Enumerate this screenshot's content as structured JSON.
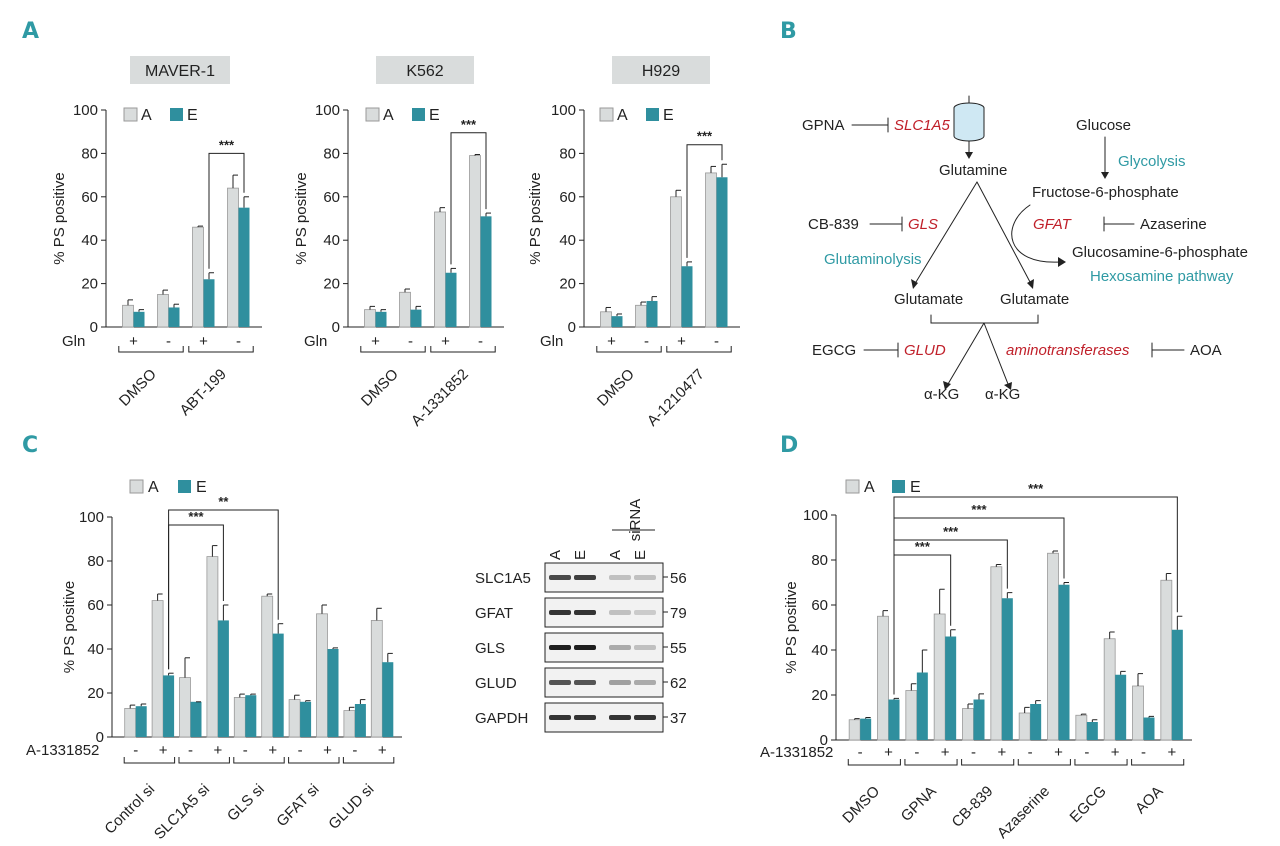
{
  "colors": {
    "A": "#d9dcdc",
    "E": "#2f8f9e",
    "accent": "#2f9aa4",
    "red": "#c0202a"
  },
  "panels": {
    "A": "A",
    "B": "B",
    "C": "C",
    "D": "D"
  },
  "legend": {
    "A": "A",
    "E": "E"
  },
  "gln_label": "Gln",
  "treatment_label": "A-1331852",
  "chart_data": [
    {
      "id": "A1",
      "type": "bar",
      "title": "MAVER-1",
      "ylabel": "% PS positive",
      "ylim": [
        0,
        100
      ],
      "yticks": [
        "0",
        "20",
        "40",
        "60",
        "80",
        "100"
      ],
      "conditions": [
        "+",
        "-",
        "+",
        "-"
      ],
      "groups": [
        "DMSO",
        "ABT-199"
      ],
      "series": [
        {
          "name": "A",
          "values": [
            10,
            15,
            46,
            64
          ],
          "errors": [
            2.5,
            2,
            0.5,
            6
          ]
        },
        {
          "name": "E",
          "values": [
            7,
            9,
            22,
            55
          ],
          "errors": [
            1,
            1.5,
            3,
            5
          ]
        }
      ],
      "significance": [
        {
          "label": "***",
          "from": [
            2,
            1
          ],
          "to": [
            3,
            1
          ]
        }
      ]
    },
    {
      "id": "A2",
      "type": "bar",
      "title": "K562",
      "ylabel": "% PS positive",
      "ylim": [
        0,
        100
      ],
      "yticks": [
        "0",
        "20",
        "40",
        "60",
        "80",
        "100"
      ],
      "conditions": [
        "+",
        "-",
        "+",
        "-"
      ],
      "groups": [
        "DMSO",
        "A-1331852"
      ],
      "series": [
        {
          "name": "A",
          "values": [
            8,
            16,
            53,
            79
          ],
          "errors": [
            1.5,
            1.5,
            2,
            0.5
          ]
        },
        {
          "name": "E",
          "values": [
            7,
            8,
            25,
            51
          ],
          "errors": [
            1,
            1.5,
            2,
            1.5
          ]
        }
      ],
      "significance": [
        {
          "label": "***",
          "from": [
            2,
            1
          ],
          "to": [
            3,
            1
          ]
        }
      ]
    },
    {
      "id": "A3",
      "type": "bar",
      "title": "H929",
      "ylabel": "% PS positive",
      "ylim": [
        0,
        100
      ],
      "yticks": [
        "0",
        "20",
        "40",
        "60",
        "80",
        "100"
      ],
      "conditions": [
        "+",
        "-",
        "+",
        "-"
      ],
      "groups": [
        "DMSO",
        "A-1210477"
      ],
      "series": [
        {
          "name": "A",
          "values": [
            7,
            10,
            60,
            71
          ],
          "errors": [
            2,
            1.5,
            3,
            3
          ]
        },
        {
          "name": "E",
          "values": [
            5,
            12,
            28,
            69
          ],
          "errors": [
            1,
            2,
            2,
            6
          ]
        }
      ],
      "significance": [
        {
          "label": "***",
          "from": [
            2,
            1
          ],
          "to": [
            3,
            1
          ]
        }
      ]
    },
    {
      "id": "C",
      "type": "bar",
      "title": "",
      "ylabel": "% PS positive",
      "ylim": [
        0,
        100
      ],
      "yticks": [
        "0",
        "20",
        "40",
        "60",
        "80",
        "100"
      ],
      "conditions": [
        "-",
        "+",
        "-",
        "+",
        "-",
        "+",
        "-",
        "+",
        "-",
        "+"
      ],
      "groups": [
        "Control si",
        "SLC1A5 si",
        "GLS si",
        "GFAT si",
        "GLUD si"
      ],
      "series": [
        {
          "name": "A",
          "values": [
            13,
            62,
            27,
            82,
            18,
            64,
            17,
            56,
            12,
            53
          ],
          "errors": [
            1.5,
            3,
            9,
            5,
            1.5,
            1,
            2,
            4,
            1.5,
            5.5
          ]
        },
        {
          "name": "E",
          "values": [
            14,
            28,
            16,
            53,
            19,
            47,
            16,
            40,
            15,
            34
          ],
          "errors": [
            1,
            1,
            0,
            7,
            0.5,
            4.5,
            0.5,
            0.5,
            2,
            4
          ]
        }
      ],
      "significance": [
        {
          "label": "***",
          "from": [
            1,
            1
          ],
          "to": [
            3,
            1
          ]
        },
        {
          "label": "**",
          "from": [
            1,
            1
          ],
          "to": [
            5,
            1
          ]
        }
      ]
    },
    {
      "id": "D",
      "type": "bar",
      "title": "",
      "ylabel": "% PS positive",
      "ylim": [
        0,
        100
      ],
      "yticks": [
        "0",
        "20",
        "40",
        "60",
        "80",
        "100"
      ],
      "conditions": [
        "-",
        "+",
        "-",
        "+",
        "-",
        "+",
        "-",
        "+",
        "-",
        "+",
        "-",
        "+"
      ],
      "groups": [
        "DMSO",
        "GPNA",
        "CB-839",
        "Azaserine",
        "EGCG",
        "AOA"
      ],
      "series": [
        {
          "name": "A",
          "values": [
            9,
            55,
            22,
            56,
            14,
            77,
            12,
            83,
            11,
            45,
            24,
            71
          ],
          "errors": [
            0.5,
            2.5,
            3,
            11,
            2,
            1,
            2.5,
            1,
            0.5,
            3,
            5.5,
            3
          ]
        },
        {
          "name": "E",
          "values": [
            9.5,
            18,
            30,
            46,
            18,
            63,
            16,
            69,
            8,
            29,
            10,
            49
          ],
          "errors": [
            0.5,
            0.5,
            10,
            3,
            2.5,
            2.5,
            1.5,
            1,
            1,
            1.5,
            0.5,
            6
          ]
        }
      ],
      "significance": [
        {
          "label": "***",
          "from": [
            1,
            1
          ],
          "to": [
            3,
            1
          ]
        },
        {
          "label": "***",
          "from": [
            1,
            1
          ],
          "to": [
            5,
            1
          ]
        },
        {
          "label": "***",
          "from": [
            1,
            1
          ],
          "to": [
            7,
            1
          ]
        },
        {
          "label": "***",
          "from": [
            1,
            1
          ],
          "to": [
            11,
            1
          ]
        }
      ]
    }
  ],
  "blot": {
    "lanes": [
      "A",
      "E",
      "A",
      "E"
    ],
    "sirna_label": "siRNA",
    "bands": [
      {
        "name": "SLC1A5",
        "kda": "56",
        "intensity": [
          0.75,
          0.8,
          0.2,
          0.2
        ]
      },
      {
        "name": "GFAT",
        "kda": "79",
        "intensity": [
          0.85,
          0.85,
          0.2,
          0.15
        ]
      },
      {
        "name": "GLS",
        "kda": "55",
        "intensity": [
          0.95,
          0.95,
          0.3,
          0.2
        ]
      },
      {
        "name": "GLUD",
        "kda": "62",
        "intensity": [
          0.7,
          0.7,
          0.35,
          0.3
        ]
      },
      {
        "name": "GAPDH",
        "kda": "37",
        "intensity": [
          0.85,
          0.85,
          0.85,
          0.85
        ]
      }
    ]
  },
  "pathway": {
    "gpna": "GPNA",
    "slc1a5": "SLC1A5",
    "glutamine": "Glutamine",
    "glucose": "Glucose",
    "glycolysis": "Glycolysis",
    "f6p": "Fructose-6-phosphate",
    "cb839": "CB-839",
    "gls": "GLS",
    "gfat": "GFAT",
    "azaserine": "Azaserine",
    "g6p": "Glucosamine-6-phosphate",
    "glutaminolysis": "Glutaminolysis",
    "hexosamine": "Hexosamine pathway",
    "glutamate1": "Glutamate",
    "glutamate2": "Glutamate",
    "egcg": "EGCG",
    "glud": "GLUD",
    "aminotransferases": "aminotransferases",
    "aoa": "AOA",
    "akg1": "α-KG",
    "akg2": "α-KG"
  }
}
